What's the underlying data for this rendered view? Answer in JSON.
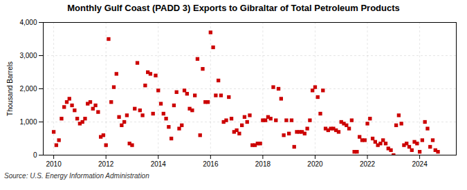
{
  "chart_data": {
    "type": "scatter",
    "title": "Monthly Gulf Coast (PADD 3) Exports to Gibraltar of Total Petroleum Products",
    "ylabel": "Thousand Barrels",
    "source": "Source: U.S. Energy Information Administration",
    "color": "#cc0000",
    "marker": "square",
    "grid": true,
    "xlim": [
      2009.6,
      2025.4
    ],
    "xticks": [
      2010,
      2012,
      2014,
      2016,
      2018,
      2020,
      2022,
      2024
    ],
    "ylim": [
      0,
      4000
    ],
    "yticks": [
      0,
      {
        "value": 1000,
        "label": "1,000"
      },
      {
        "value": 2000,
        "label": "2,000"
      },
      {
        "value": 3000,
        "label": "3,000"
      },
      {
        "value": 4000,
        "label": "4,000"
      }
    ],
    "x": [
      2010.0,
      2010.1,
      2010.2,
      2010.3,
      2010.4,
      2010.5,
      2010.6,
      2010.7,
      2010.8,
      2010.9,
      2011.0,
      2011.1,
      2011.2,
      2011.3,
      2011.4,
      2011.5,
      2011.6,
      2011.7,
      2011.8,
      2011.9,
      2012.0,
      2012.1,
      2012.2,
      2012.3,
      2012.4,
      2012.5,
      2012.6,
      2012.7,
      2012.8,
      2012.9,
      2013.0,
      2013.1,
      2013.2,
      2013.3,
      2013.4,
      2013.5,
      2013.6,
      2013.7,
      2013.8,
      2013.9,
      2014.0,
      2014.1,
      2014.2,
      2014.3,
      2014.4,
      2014.5,
      2014.6,
      2014.7,
      2014.8,
      2014.9,
      2015.0,
      2015.1,
      2015.2,
      2015.3,
      2015.4,
      2015.5,
      2015.6,
      2015.7,
      2015.8,
      2015.9,
      2016.0,
      2016.1,
      2016.2,
      2016.3,
      2016.4,
      2016.5,
      2016.6,
      2016.7,
      2016.8,
      2016.9,
      2017.0,
      2017.1,
      2017.2,
      2017.3,
      2017.4,
      2017.5,
      2017.6,
      2017.7,
      2017.8,
      2017.9,
      2018.0,
      2018.1,
      2018.2,
      2018.3,
      2018.4,
      2018.5,
      2018.6,
      2018.7,
      2018.8,
      2018.9,
      2019.0,
      2019.1,
      2019.2,
      2019.3,
      2019.4,
      2019.5,
      2019.6,
      2019.7,
      2019.8,
      2019.9,
      2020.0,
      2020.1,
      2020.2,
      2020.3,
      2020.4,
      2020.5,
      2020.6,
      2020.7,
      2020.8,
      2020.9,
      2021.0,
      2021.1,
      2021.2,
      2021.3,
      2021.4,
      2021.5,
      2021.6,
      2021.7,
      2021.8,
      2021.9,
      2022.0,
      2022.1,
      2022.2,
      2022.3,
      2022.4,
      2022.5,
      2022.6,
      2022.7,
      2022.8,
      2022.9,
      2023.0,
      2023.1,
      2023.2,
      2023.3,
      2023.4,
      2023.5,
      2023.6,
      2023.7,
      2023.8,
      2023.9,
      2024.0,
      2024.1,
      2024.2,
      2024.3,
      2024.4,
      2024.5,
      2024.6,
      2024.7
    ],
    "values": [
      700,
      300,
      450,
      1100,
      1450,
      1600,
      1700,
      1500,
      1350,
      1100,
      950,
      1000,
      1100,
      1550,
      1600,
      1400,
      1500,
      1300,
      550,
      600,
      300,
      3500,
      1600,
      2050,
      2450,
      1150,
      900,
      1000,
      1200,
      350,
      300,
      1400,
      2780,
      1350,
      1200,
      2100,
      2500,
      2450,
      1250,
      2400,
      1950,
      1550,
      1250,
      1100,
      850,
      500,
      1500,
      1900,
      800,
      900,
      1950,
      1850,
      1400,
      1350,
      1800,
      2900,
      600,
      2600,
      1600,
      1600,
      3700,
      3250,
      1800,
      2250,
      1800,
      1000,
      1050,
      1750,
      1100,
      700,
      750,
      650,
      900,
      1150,
      1000,
      1200,
      300,
      300,
      350,
      350,
      1050,
      1050,
      1150,
      1100,
      2050,
      1050,
      2000,
      1700,
      600,
      1050,
      650,
      1050,
      250,
      700,
      700,
      700,
      650,
      800,
      1050,
      1950,
      2050,
      1750,
      1250,
      1950,
      800,
      750,
      800,
      800,
      750,
      700,
      1000,
      950,
      900,
      800,
      1050,
      100,
      100,
      550,
      450,
      450,
      950,
      1100,
      500,
      400,
      300,
      350,
      450,
      350,
      200,
      150,
      0,
      900,
      1200,
      950,
      300,
      350,
      250,
      150,
      400,
      350,
      100,
      450,
      1000,
      800,
      250,
      450,
      150,
      100
    ]
  }
}
